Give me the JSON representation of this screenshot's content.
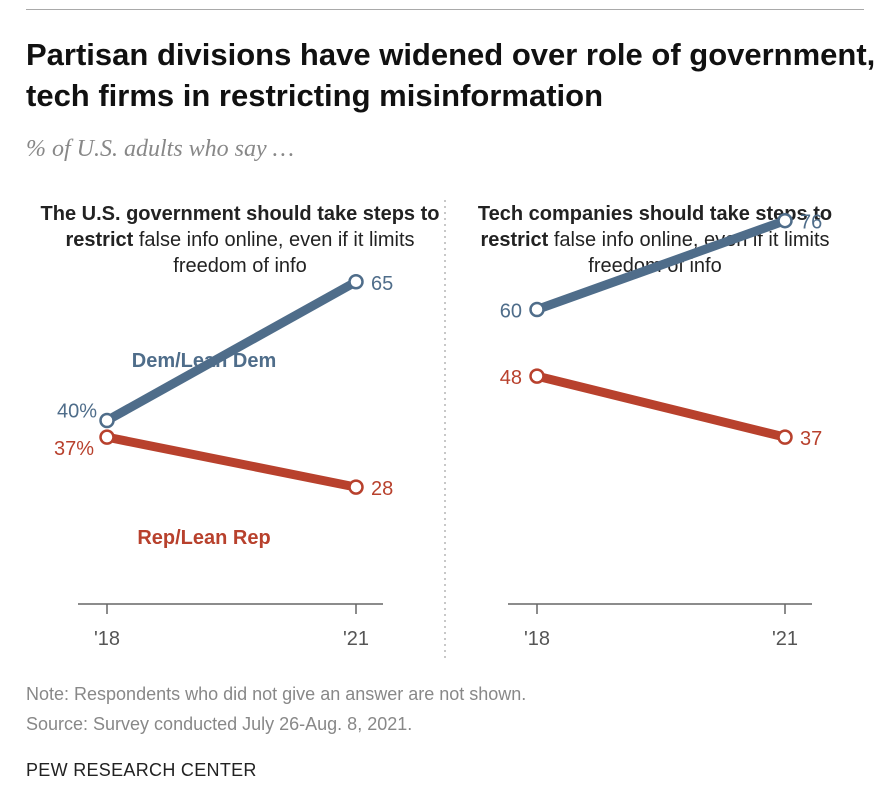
{
  "title": "Partisan divisions have widened over role of government, tech firms in restricting misinformation",
  "subtitle": "% of U.S. adults who say …",
  "colors": {
    "dem": "#4f6d8a",
    "rep": "#b8412d",
    "axis": "#666666",
    "divider": "#b5b5b5",
    "note": "#888888"
  },
  "chart_data": [
    {
      "type": "line",
      "title_bold": "The U.S. government should take steps to restrict",
      "title_rest": "false info online, even if it limits freedom of info",
      "x": [
        "'18",
        "'21"
      ],
      "series": [
        {
          "name": "Dem/Lean Dem",
          "values": [
            40,
            65
          ],
          "labels": [
            "40%",
            "65"
          ]
        },
        {
          "name": "Rep/Lean Rep",
          "values": [
            37,
            28
          ],
          "labels": [
            "37%",
            "28"
          ]
        }
      ]
    },
    {
      "type": "line",
      "title_bold": "Tech companies should take steps to restrict",
      "title_rest": "false info online, even if it limits freedom of info",
      "x": [
        "'18",
        "'21"
      ],
      "series": [
        {
          "name": "Dem/Lean Dem",
          "values": [
            60,
            76
          ],
          "labels": [
            "60",
            "76"
          ]
        },
        {
          "name": "Rep/Lean Rep",
          "values": [
            48,
            37
          ],
          "labels": [
            "48",
            "37"
          ]
        }
      ]
    }
  ],
  "legend": {
    "dem": "Dem/Lean Dem",
    "rep": "Rep/Lean Rep"
  },
  "note": "Note: Respondents who did not give an answer are not shown.",
  "source": "Source: Survey conducted July 26-Aug. 8, 2021.",
  "brand": "PEW RESEARCH CENTER"
}
